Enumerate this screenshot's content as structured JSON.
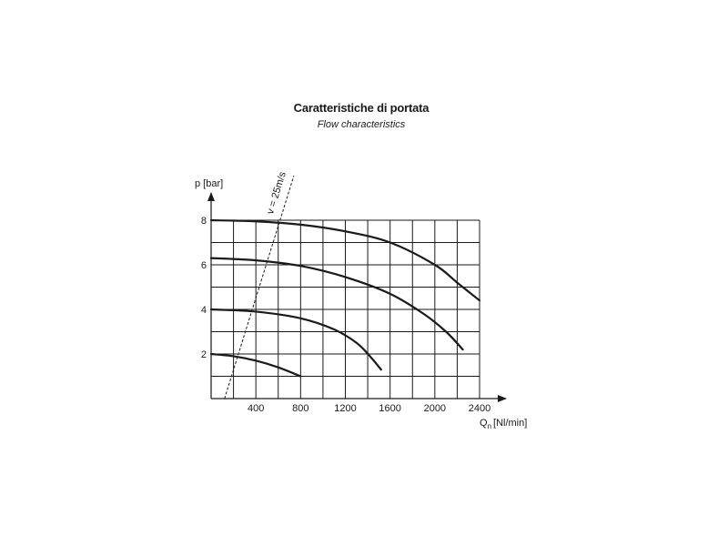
{
  "header": {
    "title": "Caratteristiche di portata",
    "subtitle": "Flow characteristics"
  },
  "chart_data": {
    "type": "line",
    "title": "Caratteristiche di portata",
    "subtitle": "Flow characteristics",
    "ylabel": "p [bar]",
    "xlabel_main": "Q",
    "xlabel_sub": "n",
    "xlabel_unit": "[Nl/min]",
    "xlim": [
      0,
      2400
    ],
    "ylim": [
      0,
      8
    ],
    "x_ticks": [
      400,
      800,
      1200,
      1600,
      2000,
      2400
    ],
    "y_ticks": [
      2,
      4,
      6,
      8
    ],
    "grid": true,
    "grid_x_step": 200,
    "grid_y_step": 1,
    "series": [
      {
        "points": [
          [
            0,
            8.0
          ],
          [
            400,
            7.95
          ],
          [
            800,
            7.8
          ],
          [
            1200,
            7.5
          ],
          [
            1600,
            7.0
          ],
          [
            2000,
            6.0
          ],
          [
            2200,
            5.2
          ],
          [
            2400,
            4.4
          ]
        ]
      },
      {
        "points": [
          [
            0,
            6.3
          ],
          [
            400,
            6.2
          ],
          [
            800,
            5.95
          ],
          [
            1200,
            5.45
          ],
          [
            1600,
            4.7
          ],
          [
            1900,
            3.8
          ],
          [
            2100,
            3.0
          ],
          [
            2250,
            2.2
          ]
        ]
      },
      {
        "points": [
          [
            0,
            4.0
          ],
          [
            400,
            3.9
          ],
          [
            800,
            3.6
          ],
          [
            1100,
            3.1
          ],
          [
            1300,
            2.5
          ],
          [
            1420,
            1.9
          ],
          [
            1520,
            1.3
          ]
        ]
      },
      {
        "points": [
          [
            0,
            2.0
          ],
          [
            200,
            1.9
          ],
          [
            400,
            1.7
          ],
          [
            600,
            1.4
          ],
          [
            800,
            1.0
          ]
        ]
      }
    ],
    "velocity_line": {
      "label": "v = 25m/s",
      "x_at_p0": 120,
      "x_at_p8": 600,
      "x_at_p10": 740
    }
  }
}
